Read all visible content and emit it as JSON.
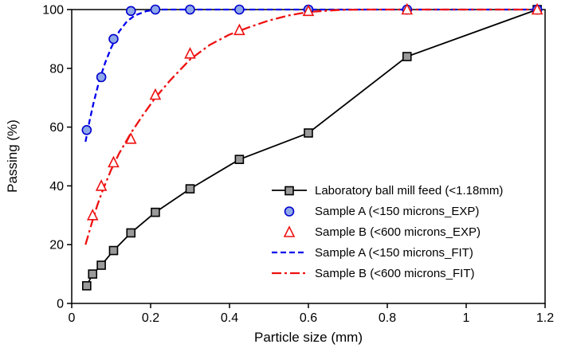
{
  "chart_data": {
    "type": "line",
    "title": "",
    "xlabel": "Particle size (mm)",
    "ylabel": "Passing (%)",
    "xlim": [
      0,
      1.2
    ],
    "ylim": [
      0,
      100
    ],
    "grid": false,
    "legend_position": "inside-lower-right",
    "x_tick_values": [
      0,
      0.2,
      0.4,
      0.6,
      0.8,
      1,
      1.2
    ],
    "x_tick_labels": [
      "0",
      "0.2",
      "0.4",
      "0.6",
      "0.8",
      "1",
      "1.2"
    ],
    "y_tick_values": [
      0,
      20,
      40,
      60,
      80,
      100
    ],
    "y_tick_labels": [
      "0",
      "20",
      "40",
      "60",
      "80",
      "100"
    ],
    "series": [
      {
        "name": "Laboratory ball mill feed (<1.18mm)",
        "kind": "line-marker",
        "marker": "square",
        "line_style": "solid",
        "stroke": "#000000",
        "marker_fill": "#9a9a9a",
        "marker_stroke": "#000000",
        "points": [
          [
            0.038,
            6
          ],
          [
            0.053,
            10
          ],
          [
            0.075,
            13
          ],
          [
            0.106,
            18
          ],
          [
            0.15,
            24
          ],
          [
            0.212,
            31
          ],
          [
            0.3,
            39
          ],
          [
            0.425,
            49
          ],
          [
            0.6,
            58
          ],
          [
            0.85,
            84
          ],
          [
            1.18,
            100
          ]
        ]
      },
      {
        "name": "Sample A (<150 microns_EXP)",
        "kind": "marker",
        "marker": "circle",
        "line_style": "none",
        "stroke": "#0000cd",
        "marker_fill": "#8fa8e8",
        "marker_stroke": "#0000cd",
        "points": [
          [
            0.038,
            59
          ],
          [
            0.075,
            77
          ],
          [
            0.106,
            90
          ],
          [
            0.15,
            99.5
          ],
          [
            0.212,
            100
          ],
          [
            0.3,
            100
          ],
          [
            0.425,
            100
          ],
          [
            0.6,
            100
          ],
          [
            0.85,
            100
          ],
          [
            1.18,
            100
          ]
        ]
      },
      {
        "name": "Sample B (<600 microns_EXP)",
        "kind": "marker",
        "marker": "triangle",
        "line_style": "none",
        "stroke": "#ee1111",
        "marker_fill": "#ffffff",
        "marker_stroke": "#ee1111",
        "points": [
          [
            0.053,
            30
          ],
          [
            0.075,
            40
          ],
          [
            0.106,
            48
          ],
          [
            0.15,
            56
          ],
          [
            0.212,
            71
          ],
          [
            0.3,
            85
          ],
          [
            0.425,
            93
          ],
          [
            0.6,
            99.5
          ],
          [
            0.85,
            100
          ],
          [
            1.18,
            100
          ]
        ]
      },
      {
        "name": "Sample A  (<150 microns_FIT)",
        "kind": "line",
        "marker": "none",
        "line_style": "dashed",
        "stroke": "#0000ee",
        "points": [
          [
            0.035,
            55
          ],
          [
            0.045,
            62
          ],
          [
            0.055,
            68
          ],
          [
            0.07,
            76
          ],
          [
            0.085,
            82
          ],
          [
            0.1,
            87
          ],
          [
            0.12,
            92.5
          ],
          [
            0.14,
            96
          ],
          [
            0.16,
            98
          ],
          [
            0.19,
            99.5
          ],
          [
            0.23,
            100
          ],
          [
            1.18,
            100
          ]
        ]
      },
      {
        "name": "Sample B (<600 microns_FIT)",
        "kind": "line",
        "marker": "none",
        "line_style": "dashdot",
        "stroke": "#ee1111",
        "points": [
          [
            0.035,
            20
          ],
          [
            0.05,
            27
          ],
          [
            0.065,
            33.5
          ],
          [
            0.08,
            39
          ],
          [
            0.1,
            45.5
          ],
          [
            0.12,
            51
          ],
          [
            0.15,
            58
          ],
          [
            0.18,
            64
          ],
          [
            0.212,
            70
          ],
          [
            0.25,
            76
          ],
          [
            0.3,
            83
          ],
          [
            0.35,
            88
          ],
          [
            0.4,
            91.5
          ],
          [
            0.45,
            94
          ],
          [
            0.5,
            96.3
          ],
          [
            0.55,
            98
          ],
          [
            0.6,
            99.2
          ],
          [
            0.68,
            99.9
          ],
          [
            0.75,
            100
          ],
          [
            1.18,
            100
          ]
        ]
      }
    ]
  }
}
